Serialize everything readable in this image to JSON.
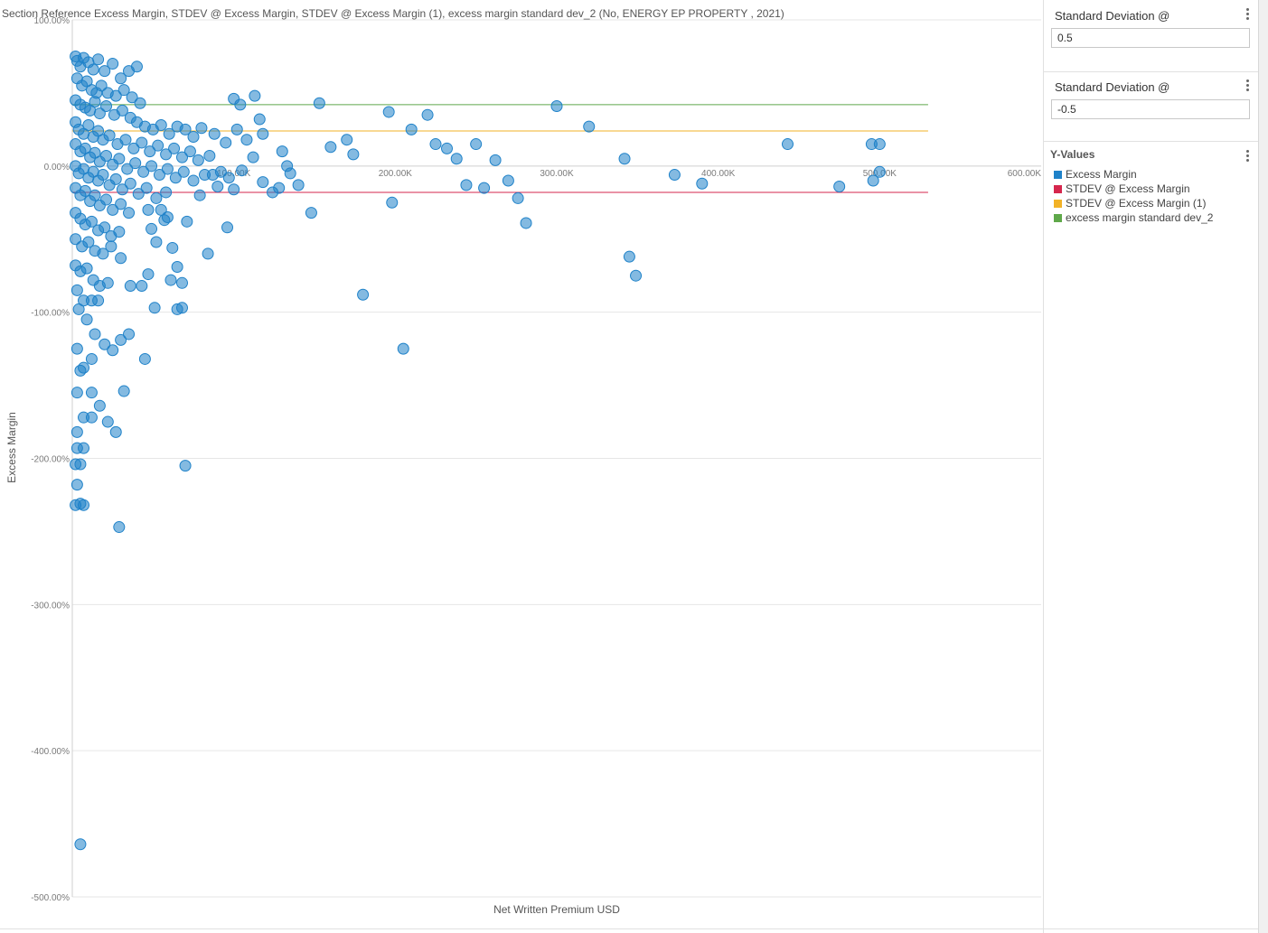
{
  "chart_title": "Section Reference Excess Margin, STDEV @ Excess Margin, STDEV @ Excess Margin (1), excess margin standard dev_2 (No, ENERGY EP PROPERTY , 2021)",
  "parameters": [
    {
      "title": "Standard Deviation @",
      "value": "0.5"
    },
    {
      "title": "Standard Deviation @",
      "value": "-0.5"
    }
  ],
  "legend": {
    "title": "Y-Values",
    "items": [
      {
        "label": "Excess Margin",
        "color": "#1f82c9"
      },
      {
        "label": "STDEV @ Excess Margin",
        "color": "#d6264d"
      },
      {
        "label": "STDEV @ Excess Margin (1)",
        "color": "#f2b227"
      },
      {
        "label": "excess margin standard dev_2",
        "color": "#5fa84a"
      }
    ]
  },
  "chart_data": {
    "type": "scatter",
    "title": "Section Reference Excess Margin, STDEV @ Excess Margin, STDEV @ Excess Margin (1), excess margin standard dev_2 (No, ENERGY EP PROPERTY , 2021)",
    "xlabel": "Net Written Premium USD",
    "ylabel": "Excess Margin",
    "xlim": [
      0,
      600000
    ],
    "ylim": [
      -5.0,
      1.0
    ],
    "x_ticks": [
      100000,
      200000,
      300000,
      400000,
      500000,
      600000
    ],
    "x_tick_labels": [
      "100.00K",
      "200.00K",
      "300.00K",
      "400.00K",
      "500.00K",
      "600.00K"
    ],
    "y_ticks": [
      1.0,
      0.0,
      -1.0,
      -2.0,
      -3.0,
      -4.0,
      -5.0
    ],
    "y_tick_labels": [
      "100.00%",
      "0.00%",
      "-100.00%",
      "-200.00%",
      "-300.00%",
      "-400.00%",
      "-500.00%"
    ],
    "grid": true,
    "legend_position": "right",
    "reference_lines": [
      {
        "name": "STDEV @ Excess Margin",
        "y": -0.18,
        "x_range": [
          0,
          530000
        ],
        "color": "#d6264d"
      },
      {
        "name": "STDEV @ Excess Margin (1)",
        "y": 0.24,
        "x_range": [
          0,
          530000
        ],
        "color": "#f2b227"
      },
      {
        "name": "excess margin standard dev_2",
        "y": 0.42,
        "x_range": [
          0,
          530000
        ],
        "color": "#5fa84a"
      }
    ],
    "series": [
      {
        "name": "Excess Margin",
        "color": "#1f82c9",
        "points": [
          [
            2000,
            0.75
          ],
          [
            3000,
            0.72
          ],
          [
            5000,
            0.68
          ],
          [
            7000,
            0.74
          ],
          [
            10000,
            0.71
          ],
          [
            13000,
            0.66
          ],
          [
            16000,
            0.73
          ],
          [
            20000,
            0.65
          ],
          [
            25000,
            0.7
          ],
          [
            30000,
            0.6
          ],
          [
            35000,
            0.65
          ],
          [
            40000,
            0.68
          ],
          [
            3000,
            0.6
          ],
          [
            6000,
            0.55
          ],
          [
            9000,
            0.58
          ],
          [
            12000,
            0.52
          ],
          [
            15000,
            0.5
          ],
          [
            18000,
            0.55
          ],
          [
            22000,
            0.5
          ],
          [
            27000,
            0.48
          ],
          [
            32000,
            0.52
          ],
          [
            37000,
            0.47
          ],
          [
            42000,
            0.43
          ],
          [
            2000,
            0.45
          ],
          [
            5000,
            0.42
          ],
          [
            8000,
            0.4
          ],
          [
            11000,
            0.38
          ],
          [
            14000,
            0.44
          ],
          [
            17000,
            0.36
          ],
          [
            21000,
            0.41
          ],
          [
            26000,
            0.35
          ],
          [
            31000,
            0.38
          ],
          [
            36000,
            0.33
          ],
          [
            40000,
            0.3
          ],
          [
            45000,
            0.27
          ],
          [
            50000,
            0.25
          ],
          [
            55000,
            0.28
          ],
          [
            60000,
            0.22
          ],
          [
            65000,
            0.27
          ],
          [
            70000,
            0.25
          ],
          [
            75000,
            0.2
          ],
          [
            80000,
            0.26
          ],
          [
            88000,
            0.22
          ],
          [
            95000,
            0.16
          ],
          [
            2000,
            0.3
          ],
          [
            4000,
            0.25
          ],
          [
            7000,
            0.22
          ],
          [
            10000,
            0.28
          ],
          [
            13000,
            0.2
          ],
          [
            16000,
            0.24
          ],
          [
            19000,
            0.18
          ],
          [
            23000,
            0.21
          ],
          [
            28000,
            0.15
          ],
          [
            33000,
            0.18
          ],
          [
            38000,
            0.12
          ],
          [
            43000,
            0.16
          ],
          [
            48000,
            0.1
          ],
          [
            53000,
            0.14
          ],
          [
            58000,
            0.08
          ],
          [
            63000,
            0.12
          ],
          [
            68000,
            0.06
          ],
          [
            73000,
            0.1
          ],
          [
            78000,
            0.04
          ],
          [
            85000,
            0.07
          ],
          [
            2000,
            0.15
          ],
          [
            5000,
            0.1
          ],
          [
            8000,
            0.12
          ],
          [
            11000,
            0.06
          ],
          [
            14000,
            0.09
          ],
          [
            17000,
            0.03
          ],
          [
            21000,
            0.07
          ],
          [
            25000,
            0.01
          ],
          [
            29000,
            0.05
          ],
          [
            34000,
            -0.02
          ],
          [
            39000,
            0.02
          ],
          [
            44000,
            -0.04
          ],
          [
            49000,
            0.0
          ],
          [
            54000,
            -0.06
          ],
          [
            59000,
            -0.02
          ],
          [
            64000,
            -0.08
          ],
          [
            69000,
            -0.04
          ],
          [
            75000,
            -0.1
          ],
          [
            82000,
            -0.06
          ],
          [
            90000,
            -0.14
          ],
          [
            100000,
            -0.16
          ],
          [
            2000,
            0.0
          ],
          [
            4000,
            -0.05
          ],
          [
            7000,
            -0.02
          ],
          [
            10000,
            -0.08
          ],
          [
            13000,
            -0.04
          ],
          [
            16000,
            -0.1
          ],
          [
            19000,
            -0.06
          ],
          [
            23000,
            -0.13
          ],
          [
            27000,
            -0.09
          ],
          [
            31000,
            -0.16
          ],
          [
            36000,
            -0.12
          ],
          [
            41000,
            -0.19
          ],
          [
            46000,
            -0.15
          ],
          [
            52000,
            -0.22
          ],
          [
            58000,
            -0.18
          ],
          [
            2000,
            -0.15
          ],
          [
            5000,
            -0.2
          ],
          [
            8000,
            -0.17
          ],
          [
            11000,
            -0.24
          ],
          [
            14000,
            -0.2
          ],
          [
            17000,
            -0.27
          ],
          [
            21000,
            -0.23
          ],
          [
            25000,
            -0.3
          ],
          [
            30000,
            -0.26
          ],
          [
            35000,
            -0.32
          ],
          [
            2000,
            -0.32
          ],
          [
            5000,
            -0.36
          ],
          [
            8000,
            -0.4
          ],
          [
            12000,
            -0.38
          ],
          [
            16000,
            -0.44
          ],
          [
            20000,
            -0.42
          ],
          [
            24000,
            -0.48
          ],
          [
            29000,
            -0.45
          ],
          [
            2000,
            -0.5
          ],
          [
            6000,
            -0.55
          ],
          [
            10000,
            -0.52
          ],
          [
            14000,
            -0.58
          ],
          [
            19000,
            -0.6
          ],
          [
            24000,
            -0.55
          ],
          [
            30000,
            -0.63
          ],
          [
            2000,
            -0.68
          ],
          [
            5000,
            -0.72
          ],
          [
            9000,
            -0.7
          ],
          [
            13000,
            -0.78
          ],
          [
            17000,
            -0.82
          ],
          [
            22000,
            -0.8
          ],
          [
            3000,
            -0.85
          ],
          [
            7000,
            -0.92
          ],
          [
            12000,
            -0.92
          ],
          [
            16000,
            -0.92
          ],
          [
            4000,
            -0.98
          ],
          [
            9000,
            -1.05
          ],
          [
            3000,
            -1.25
          ],
          [
            14000,
            -1.15
          ],
          [
            20000,
            -1.22
          ],
          [
            25000,
            -1.26
          ],
          [
            30000,
            -1.19
          ],
          [
            35000,
            -1.15
          ],
          [
            5000,
            -1.4
          ],
          [
            7000,
            -1.38
          ],
          [
            12000,
            -1.32
          ],
          [
            3000,
            -1.55
          ],
          [
            12000,
            -1.55
          ],
          [
            17000,
            -1.64
          ],
          [
            32000,
            -1.54
          ],
          [
            7000,
            -1.72
          ],
          [
            12000,
            -1.72
          ],
          [
            22000,
            -1.75
          ],
          [
            27000,
            -1.82
          ],
          [
            3000,
            -1.82
          ],
          [
            3000,
            -1.93
          ],
          [
            7000,
            -1.93
          ],
          [
            2000,
            -2.04
          ],
          [
            5000,
            -2.04
          ],
          [
            3000,
            -2.18
          ],
          [
            5000,
            -2.31
          ],
          [
            7000,
            -2.32
          ],
          [
            29000,
            -2.47
          ],
          [
            5000,
            -4.64
          ],
          [
            2000,
            -2.32
          ],
          [
            47000,
            -0.3
          ],
          [
            49000,
            -0.43
          ],
          [
            52000,
            -0.52
          ],
          [
            57000,
            -0.37
          ],
          [
            62000,
            -0.56
          ],
          [
            65000,
            -0.69
          ],
          [
            68000,
            -0.8
          ],
          [
            51000,
            -0.97
          ],
          [
            61000,
            -0.78
          ],
          [
            65000,
            -0.98
          ],
          [
            36000,
            -0.82
          ],
          [
            43000,
            -0.82
          ],
          [
            47000,
            -0.74
          ],
          [
            55000,
            -0.3
          ],
          [
            59000,
            -0.35
          ],
          [
            71000,
            -0.38
          ],
          [
            79000,
            -0.2
          ],
          [
            84000,
            -0.6
          ],
          [
            100000,
            0.46
          ],
          [
            104000,
            0.42
          ],
          [
            102000,
            0.25
          ],
          [
            108000,
            0.18
          ],
          [
            112000,
            0.06
          ],
          [
            118000,
            -0.11
          ],
          [
            124000,
            -0.18
          ],
          [
            87000,
            -0.06
          ],
          [
            92000,
            -0.04
          ],
          [
            97000,
            -0.08
          ],
          [
            105000,
            -0.03
          ],
          [
            96000,
            -0.42
          ],
          [
            113000,
            0.48
          ],
          [
            116000,
            0.32
          ],
          [
            118000,
            0.22
          ],
          [
            130000,
            0.1
          ],
          [
            133000,
            0.0
          ],
          [
            128000,
            -0.15
          ],
          [
            135000,
            -0.05
          ],
          [
            140000,
            -0.13
          ],
          [
            148000,
            -0.32
          ],
          [
            153000,
            0.43
          ],
          [
            160000,
            0.13
          ],
          [
            170000,
            0.18
          ],
          [
            174000,
            0.08
          ],
          [
            196000,
            0.37
          ],
          [
            198000,
            -0.25
          ],
          [
            205000,
            -1.25
          ],
          [
            210000,
            0.25
          ],
          [
            220000,
            0.35
          ],
          [
            225000,
            0.15
          ],
          [
            232000,
            0.12
          ],
          [
            238000,
            0.05
          ],
          [
            244000,
            -0.13
          ],
          [
            250000,
            0.15
          ],
          [
            255000,
            -0.15
          ],
          [
            262000,
            0.04
          ],
          [
            270000,
            -0.1
          ],
          [
            276000,
            -0.22
          ],
          [
            281000,
            -0.39
          ],
          [
            300000,
            0.41
          ],
          [
            320000,
            0.27
          ],
          [
            345000,
            -0.62
          ],
          [
            349000,
            -0.75
          ],
          [
            342000,
            0.05
          ],
          [
            373000,
            -0.06
          ],
          [
            390000,
            -0.12
          ],
          [
            443000,
            0.15
          ],
          [
            475000,
            -0.14
          ],
          [
            495000,
            0.15
          ],
          [
            496000,
            -0.1
          ],
          [
            500000,
            -0.04
          ],
          [
            500000,
            0.15
          ],
          [
            180000,
            -0.88
          ],
          [
            70000,
            -2.05
          ],
          [
            68000,
            -0.97
          ],
          [
            45000,
            -1.32
          ]
        ]
      }
    ]
  }
}
